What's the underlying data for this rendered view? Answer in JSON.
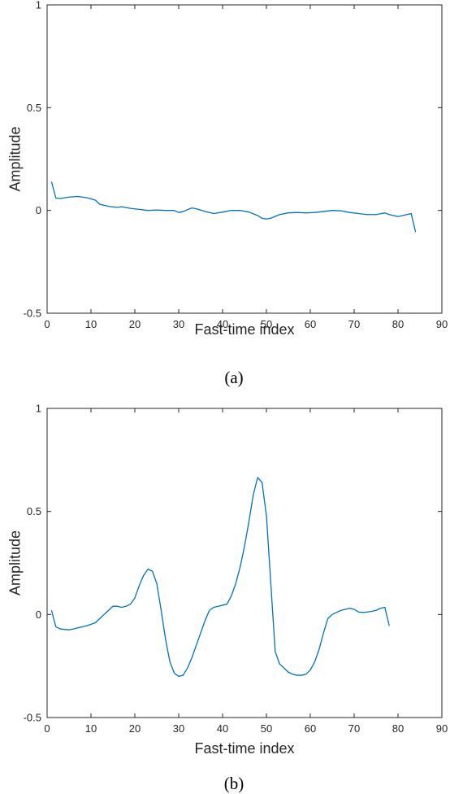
{
  "chart_data": [
    {
      "type": "line",
      "caption": "(a)",
      "xlabel": "Fast-time index",
      "ylabel": "Amplitude",
      "xlim": [
        0,
        90
      ],
      "ylim": [
        -0.5,
        1
      ],
      "xticks": [
        0,
        10,
        20,
        30,
        40,
        50,
        60,
        70,
        80,
        90
      ],
      "yticks": [
        -0.5,
        0,
        0.5,
        1
      ],
      "ytick_labels": [
        "-0.5",
        "0",
        "0.5",
        "1"
      ],
      "grid": false,
      "color": "#0072bd",
      "series": [
        {
          "x": [
            1,
            2,
            3,
            5,
            7,
            9,
            11,
            12,
            14,
            16,
            17,
            19,
            21,
            23,
            25,
            27,
            29,
            30,
            31,
            33,
            34,
            36,
            38,
            40,
            42,
            44,
            46,
            48,
            49,
            50,
            51,
            53,
            55,
            57,
            59,
            61,
            63,
            65,
            67,
            69,
            71,
            73,
            75,
            77,
            78,
            80,
            81,
            83,
            84
          ],
          "y": [
            0.14,
            0.06,
            0.058,
            0.065,
            0.068,
            0.062,
            0.05,
            0.03,
            0.02,
            0.015,
            0.018,
            0.01,
            0.005,
            0.0,
            0.002,
            0.0,
            0.0,
            -0.01,
            -0.005,
            0.012,
            0.008,
            -0.005,
            -0.015,
            -0.008,
            0.0,
            0.0,
            -0.008,
            -0.025,
            -0.038,
            -0.042,
            -0.038,
            -0.02,
            -0.012,
            -0.01,
            -0.012,
            -0.01,
            -0.005,
            0.0,
            -0.002,
            -0.01,
            -0.015,
            -0.02,
            -0.02,
            -0.012,
            -0.02,
            -0.03,
            -0.025,
            -0.015,
            -0.105
          ]
        }
      ]
    },
    {
      "type": "line",
      "caption": "(b)",
      "xlabel": "Fast-time index",
      "ylabel": "Amplitude",
      "xlim": [
        0,
        90
      ],
      "ylim": [
        -0.5,
        1
      ],
      "xticks": [
        0,
        10,
        20,
        30,
        40,
        50,
        60,
        70,
        80,
        90
      ],
      "yticks": [
        -0.5,
        0,
        0.5,
        1
      ],
      "ytick_labels": [
        "-0.5",
        "0",
        "0.5",
        "1"
      ],
      "grid": false,
      "color": "#0072bd",
      "series": [
        {
          "x": [
            1,
            2,
            3,
            5,
            7,
            9,
            11,
            12,
            13,
            14,
            15,
            16,
            17,
            18,
            19,
            20,
            21,
            22,
            23,
            24,
            25,
            26,
            27,
            28,
            29,
            30,
            31,
            32,
            33,
            34,
            35,
            36,
            37,
            38,
            39,
            40,
            41,
            42,
            43,
            44,
            45,
            46,
            47,
            48,
            49,
            50,
            51,
            52,
            53,
            54,
            55,
            56,
            57,
            58,
            59,
            60,
            61,
            62,
            63,
            64,
            65,
            66,
            67,
            68,
            69,
            70,
            71,
            72,
            73,
            74,
            75,
            76,
            77,
            78
          ],
          "y": [
            0.02,
            -0.06,
            -0.07,
            -0.075,
            -0.065,
            -0.055,
            -0.04,
            -0.02,
            0.0,
            0.02,
            0.04,
            0.04,
            0.035,
            0.04,
            0.05,
            0.08,
            0.14,
            0.19,
            0.22,
            0.21,
            0.15,
            0.02,
            -0.12,
            -0.23,
            -0.285,
            -0.3,
            -0.295,
            -0.26,
            -0.21,
            -0.15,
            -0.09,
            -0.03,
            0.02,
            0.035,
            0.04,
            0.045,
            0.05,
            0.09,
            0.15,
            0.23,
            0.33,
            0.45,
            0.58,
            0.665,
            0.64,
            0.48,
            0.15,
            -0.18,
            -0.24,
            -0.26,
            -0.28,
            -0.29,
            -0.295,
            -0.295,
            -0.29,
            -0.27,
            -0.23,
            -0.17,
            -0.09,
            -0.02,
            0.0,
            0.01,
            0.02,
            0.025,
            0.03,
            0.025,
            0.012,
            0.01,
            0.012,
            0.015,
            0.02,
            0.03,
            0.035,
            -0.055
          ]
        }
      ]
    }
  ]
}
